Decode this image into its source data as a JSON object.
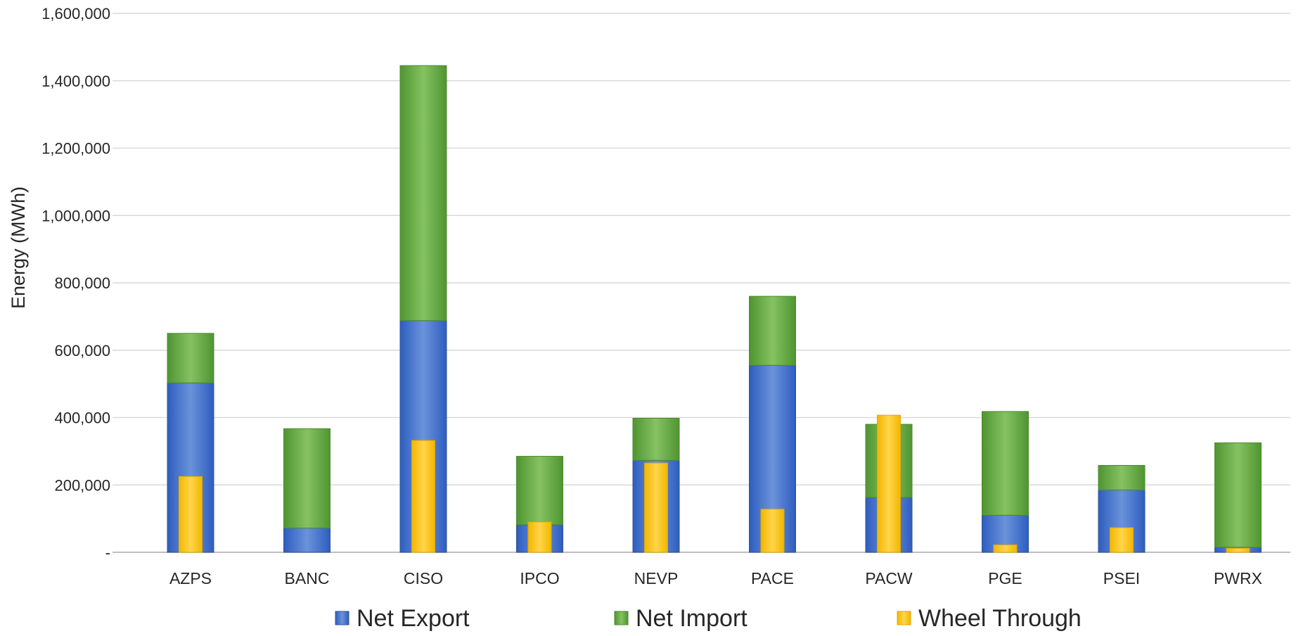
{
  "chart_data": {
    "type": "bar",
    "title": "",
    "xlabel": "",
    "ylabel": "Energy (MWh)",
    "ylim": [
      0,
      1600000
    ],
    "yticks": [
      0,
      200000,
      400000,
      600000,
      800000,
      1000000,
      1200000,
      1400000,
      1600000
    ],
    "ytick_labels": [
      "-",
      "200,000",
      "400,000",
      "600,000",
      "800,000",
      "1,000,000",
      "1,200,000",
      "1,400,000",
      "1,600,000"
    ],
    "grid": true,
    "legend_position": "bottom",
    "categories": [
      "AZPS",
      "BANC",
      "CISO",
      "IPCO",
      "NEVP",
      "PACE",
      "PACW",
      "PGE",
      "PSEI",
      "PWRX"
    ],
    "series": [
      {
        "name": "Net Export",
        "color": "#3E6BC7",
        "stacked": true,
        "values": [
          503000,
          72000,
          688000,
          82000,
          273000,
          555000,
          163000,
          110000,
          185000,
          15000
        ]
      },
      {
        "name": "Net Import",
        "color": "#6AAE47",
        "stacked": true,
        "values": [
          147000,
          295000,
          757000,
          203000,
          125000,
          205000,
          217000,
          308000,
          73000,
          310000
        ]
      },
      {
        "name": "Wheel Through",
        "color": "#FFC20E",
        "stacked": false,
        "overlay": true,
        "values": [
          225000,
          0,
          332000,
          90000,
          265000,
          128000,
          407000,
          22000,
          73000,
          12000
        ]
      }
    ]
  }
}
